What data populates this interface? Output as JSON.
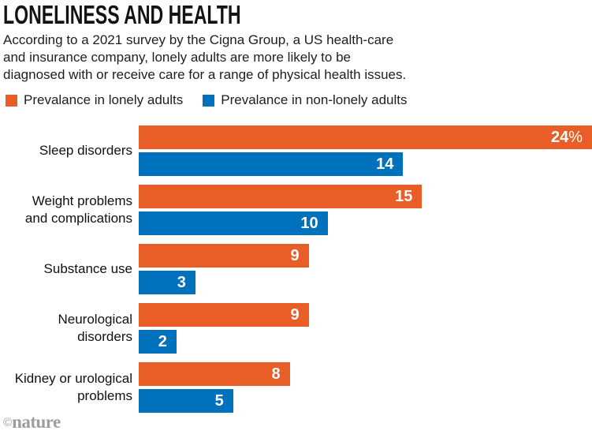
{
  "title": "LONELINESS AND HEALTH",
  "subtitle": "According to a 2021 survey by the Cigna Group, a US health-care\nand insurance company, lonely adults are more likely to be\ndiagnosed with or receive care for a range of physical health issues.",
  "legend": {
    "items": [
      {
        "label": "Prevalance in lonely adults",
        "color": "#E95D26",
        "swatch": "orange-square"
      },
      {
        "label": "Prevalance in non-lonely adults",
        "color": "#0071BC",
        "swatch": "blue-square"
      }
    ]
  },
  "footer": {
    "copyright": "©",
    "brand": "nature"
  },
  "chart_data": {
    "type": "bar",
    "orientation": "horizontal",
    "title": "LONELINESS AND HEALTH",
    "subtitle": "According to a 2021 survey by the Cigna Group, a US health-care and insurance company, lonely adults are more likely to be diagnosed with or receive care for a range of physical health issues.",
    "categories": [
      "Sleep disorders",
      "Weight problems\nand complications",
      "Substance use",
      "Neurological\ndisorders",
      "Kidney or urological\nproblems"
    ],
    "series": [
      {
        "name": "Prevalance in lonely adults",
        "color": "#E95D26",
        "values": [
          24,
          15,
          9,
          9,
          8
        ],
        "labels": [
          {
            "num": "24",
            "suffix": "%"
          },
          {
            "num": "15",
            "suffix": ""
          },
          {
            "num": "9",
            "suffix": ""
          },
          {
            "num": "9",
            "suffix": ""
          },
          {
            "num": "8",
            "suffix": ""
          }
        ]
      },
      {
        "name": "Prevalance in non-lonely adults",
        "color": "#0071BC",
        "values": [
          14,
          10,
          3,
          2,
          5
        ],
        "labels": [
          {
            "num": "14",
            "suffix": ""
          },
          {
            "num": "10",
            "suffix": ""
          },
          {
            "num": "3",
            "suffix": ""
          },
          {
            "num": "2",
            "suffix": ""
          },
          {
            "num": "5",
            "suffix": ""
          }
        ]
      }
    ],
    "xlim": [
      0,
      24
    ],
    "unit": "%",
    "grid": false,
    "legend_position": "top",
    "value_labels_inside_bars": true
  }
}
